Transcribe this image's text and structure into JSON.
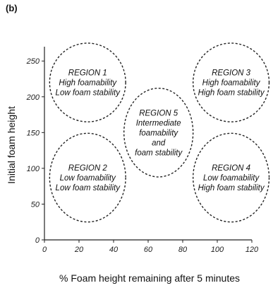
{
  "panel_label": "(b)",
  "chart_data": {
    "type": "diagram-regions",
    "xlabel": "% Foam height remaining after 5 minutes",
    "ylabel": "Initial foam height",
    "xlim": [
      0,
      120
    ],
    "ylim": [
      0,
      270
    ],
    "x_ticks": [
      0,
      20,
      40,
      60,
      80,
      100,
      120
    ],
    "y_ticks": [
      0,
      50,
      100,
      150,
      200,
      250
    ],
    "regions": [
      {
        "id": "region-1",
        "lines": [
          "REGION 1",
          "High foamability",
          "Low foam stability"
        ],
        "center": [
          25,
          220
        ],
        "radii": [
          22,
          55
        ]
      },
      {
        "id": "region-2",
        "lines": [
          "REGION 2",
          "Low foamability",
          "Low foam stability"
        ],
        "center": [
          25,
          87
        ],
        "radii": [
          22,
          62
        ]
      },
      {
        "id": "region-3",
        "lines": [
          "REGION 3",
          "High foamability",
          "High foam stability"
        ],
        "center": [
          108,
          220
        ],
        "radii": [
          22,
          55
        ]
      },
      {
        "id": "region-4",
        "lines": [
          "REGION 4",
          "Low foamability",
          "High foam stability"
        ],
        "center": [
          108,
          87
        ],
        "radii": [
          22,
          62
        ]
      },
      {
        "id": "region-5",
        "lines": [
          "REGION 5",
          "Intermediate",
          "foamability",
          "and",
          "foam stability"
        ],
        "center": [
          66,
          150
        ],
        "radii": [
          20,
          62
        ]
      }
    ]
  }
}
